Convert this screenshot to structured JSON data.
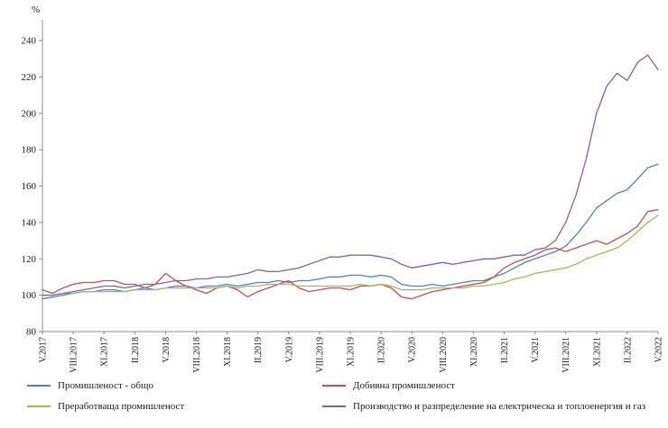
{
  "chart_data": {
    "type": "line",
    "title": "",
    "ylabel": "%",
    "ylim": [
      80,
      240
    ],
    "y_ticks": [
      80,
      100,
      120,
      140,
      160,
      180,
      200,
      220,
      240
    ],
    "x_tick_labels": [
      "V.2017",
      "VIII.2017",
      "XI.2017",
      "II.2018",
      "V.2018",
      "VIII.2018",
      "XI.2018",
      "II.2019",
      "V.2019",
      "VIII.2019",
      "XI.2019",
      "II.2020",
      "V.2020",
      "VIII.2020",
      "XI.2020",
      "II.2021",
      "V.2021",
      "VIII.2021",
      "XI.2021",
      "II.2022",
      "V.2022"
    ],
    "x_tick_every": 3,
    "n_points": 61,
    "grid": false,
    "legend_position": "bottom",
    "series": [
      {
        "name": "Промишленост - общо",
        "color": "#4F81BD",
        "values": [
          98,
          99,
          100,
          101,
          102,
          102,
          103,
          103,
          102,
          103,
          104,
          103,
          104,
          105,
          105,
          104,
          105,
          105,
          106,
          105,
          106,
          107,
          107,
          108,
          107,
          108,
          108,
          109,
          110,
          110,
          111,
          111,
          110,
          111,
          110,
          106,
          105,
          105,
          106,
          105,
          106,
          107,
          108,
          108,
          110,
          112,
          115,
          118,
          120,
          122,
          124,
          127,
          133,
          140,
          148,
          152,
          156,
          158,
          164,
          170,
          172
        ]
      },
      {
        "name": "Добивна промишленост",
        "color": "#C0504D",
        "values": [
          103,
          101,
          104,
          106,
          107,
          107,
          108,
          108,
          106,
          106,
          104,
          106,
          112,
          108,
          105,
          103,
          101,
          104,
          105,
          103,
          99,
          102,
          104,
          106,
          108,
          104,
          102,
          103,
          104,
          104,
          103,
          105,
          105,
          106,
          104,
          99,
          98,
          100,
          102,
          103,
          104,
          105,
          106,
          107,
          110,
          115,
          118,
          120,
          122,
          125,
          126,
          124,
          126,
          128,
          130,
          128,
          131,
          134,
          138,
          146,
          147
        ]
      },
      {
        "name": "Преработваща промишленост",
        "color": "#9BBB59",
        "values": [
          100,
          100,
          101,
          101,
          102,
          102,
          102,
          102,
          102,
          103,
          103,
          103,
          104,
          104,
          104,
          104,
          104,
          104,
          105,
          104,
          105,
          105,
          106,
          106,
          106,
          105,
          105,
          105,
          105,
          105,
          105,
          106,
          105,
          106,
          105,
          103,
          103,
          103,
          104,
          104,
          104,
          104,
          105,
          105,
          106,
          107,
          109,
          110,
          112,
          113,
          114,
          115,
          117,
          120,
          122,
          124,
          126,
          130,
          135,
          140,
          144
        ]
      },
      {
        "name": "Производство и разпределение на електрическа и топлоенергия  и газ",
        "color": "#8064A2",
        "values": [
          100,
          100,
          101,
          102,
          103,
          104,
          105,
          105,
          104,
          105,
          106,
          106,
          107,
          108,
          108,
          109,
          109,
          110,
          110,
          111,
          112,
          114,
          113,
          113,
          114,
          115,
          117,
          119,
          121,
          121,
          122,
          122,
          122,
          121,
          120,
          117,
          115,
          116,
          117,
          118,
          117,
          118,
          119,
          120,
          120,
          121,
          122,
          122,
          125,
          126,
          130,
          140,
          155,
          175,
          200,
          215,
          222,
          218,
          228,
          232,
          224
        ]
      }
    ]
  }
}
